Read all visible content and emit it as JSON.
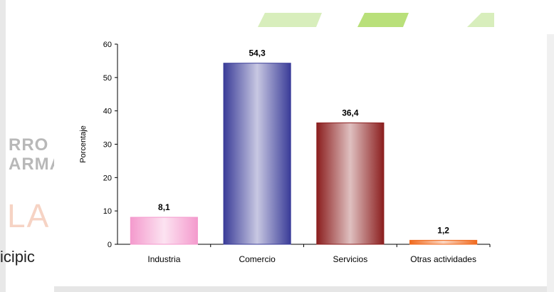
{
  "background": {
    "word1": "RRO",
    "word2": "ARMA",
    "word3": "LA I",
    "word4": "icipic"
  },
  "chart_data": {
    "type": "bar",
    "title": "",
    "xlabel": "",
    "ylabel": "Porcentaje",
    "ylim": [
      0,
      60
    ],
    "yticks": [
      0,
      10,
      20,
      30,
      40,
      50,
      60
    ],
    "grid": false,
    "categories": [
      "Industria",
      "Comercio",
      "Servicios",
      "Otras actividades"
    ],
    "values": [
      8.1,
      54.3,
      36.4,
      1.2
    ],
    "value_labels": [
      "8,1",
      "54,3",
      "36,4",
      "1,2"
    ],
    "colors": [
      "#f49acd",
      "#3a3c98",
      "#8b1e1e",
      "#f06a1e"
    ]
  },
  "colors": {
    "deco_green": "#b9e07a",
    "deco_green_light": "#d8eebc"
  }
}
